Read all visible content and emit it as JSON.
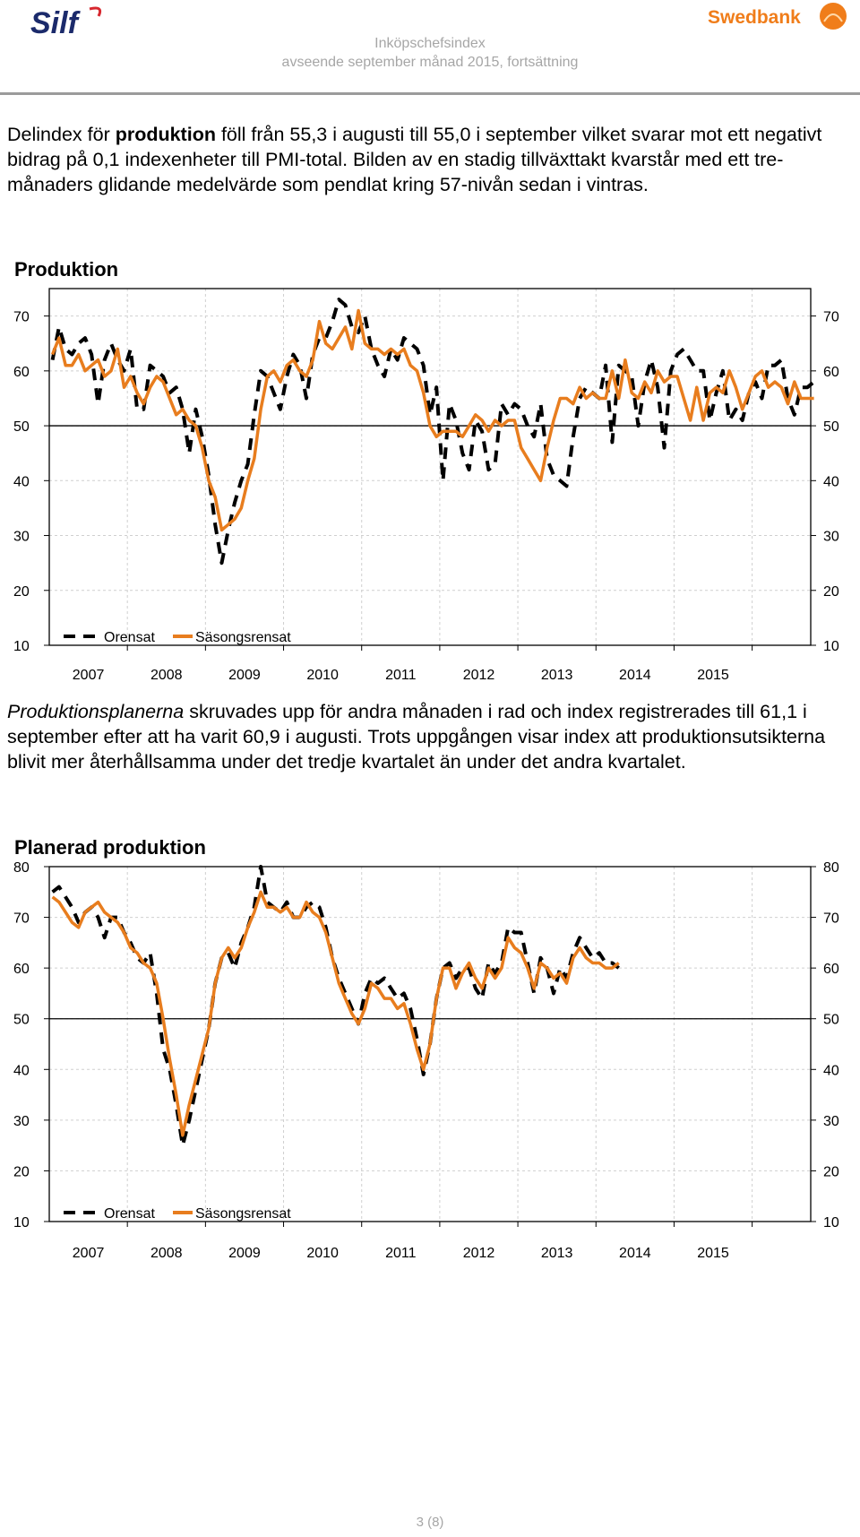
{
  "header": {
    "logo_left": "Silf",
    "logo_right": "Swedbank",
    "title": "Inköpschefsindex",
    "subtitle": "avseende september månad 2015, fortsättning"
  },
  "paragraph1": {
    "pre": "Delindex för ",
    "bold": "produktion",
    "post": " föll från 55,3 i augusti till 55,0 i september vilket svarar mot ett negativt bidrag på 0,1 indexenheter till PMI-total. Bilden av en stadig tillväxttakt kvarstår med ett tre-månaders glidande medelvärde som pendlat kring 57-nivån sedan i vintras."
  },
  "paragraph2": {
    "italic": "Produktionsplanerna",
    "post": " skruvades upp för andra månaden i rad och index registrerades till 61,1 i september efter att ha varit 60,9 i augusti. Trots uppgången visar index att produktionsutsikterna blivit mer återhållsamma under det tredje kvartalet än under det andra kvartalet."
  },
  "footer": {
    "page": "3 (8)"
  },
  "colors": {
    "orensat": "#000000",
    "sasongsrensat": "#e87d1e",
    "header_grey": "#a6a6a6"
  },
  "chart_data": [
    {
      "type": "line",
      "title": "Produktion",
      "x_start": 2006.0,
      "x_step": 0.08333,
      "xlim": [
        2006.0,
        2015.75
      ],
      "x_tick_labels": [
        "2007",
        "2008",
        "2009",
        "2010",
        "2011",
        "2012",
        "2013",
        "2014",
        "2015"
      ],
      "x_tick_positions": [
        2006.5,
        2007.5,
        2008.5,
        2009.5,
        2010.5,
        2011.5,
        2012.5,
        2013.5,
        2014.5
      ],
      "ylim": [
        10,
        75
      ],
      "y_ticks": [
        10,
        20,
        30,
        40,
        50,
        60,
        70
      ],
      "y_tick_labels": [
        "10",
        "20",
        "30",
        "40",
        "50",
        "60",
        "70"
      ],
      "reference_line": 50,
      "legend": [
        "Orensat",
        "Säsongsrensat"
      ],
      "series": [
        {
          "name": "Orensat",
          "style": "dashed",
          "values": [
            62,
            68,
            64,
            63,
            65,
            66,
            63,
            54,
            62,
            65,
            62,
            60,
            64,
            53,
            53,
            61,
            60,
            59,
            56,
            57,
            53,
            45,
            53,
            48,
            41,
            32,
            25,
            31,
            36,
            40,
            43,
            52,
            60,
            59,
            56,
            53,
            59,
            63,
            61,
            55,
            63,
            66,
            66,
            69,
            73,
            72,
            68,
            67,
            70,
            64,
            61,
            59,
            64,
            62,
            66,
            65,
            64,
            61,
            52,
            57,
            40,
            54,
            51,
            45,
            42,
            51,
            49,
            42,
            43,
            54,
            52,
            54,
            53,
            50,
            48,
            54,
            44,
            41,
            40,
            39,
            48,
            55,
            57,
            56,
            55,
            61,
            47,
            61,
            60,
            59,
            50,
            58,
            62,
            57,
            46,
            60,
            63,
            64,
            62,
            60,
            60,
            51,
            56,
            60,
            51,
            53,
            51,
            56,
            58,
            55,
            61,
            61,
            62,
            55,
            52,
            57,
            57,
            58
          ]
        },
        {
          "name": "Säsongsrensat",
          "style": "solid",
          "values": [
            63,
            66,
            61,
            61,
            63,
            60,
            61,
            62,
            59,
            60,
            64,
            57,
            59,
            56,
            54,
            57,
            59,
            58,
            55,
            52,
            53,
            51,
            50,
            46,
            40,
            37,
            31,
            32,
            33,
            35,
            40,
            44,
            53,
            59,
            60,
            58,
            61,
            62,
            60,
            59,
            62,
            69,
            65,
            64,
            66,
            68,
            64,
            71,
            65,
            64,
            64,
            63,
            64,
            63,
            64,
            61,
            60,
            56,
            50,
            48,
            49,
            49,
            49,
            48,
            50,
            52,
            51,
            49,
            51,
            50,
            51,
            51,
            46,
            44,
            42,
            40,
            46,
            51,
            55,
            55,
            54,
            57,
            55,
            56,
            55,
            55,
            60,
            55,
            62,
            56,
            55,
            58,
            56,
            60,
            58,
            59,
            59,
            55,
            51,
            57,
            51,
            56,
            57,
            56,
            60,
            57,
            53,
            56,
            59,
            60,
            57,
            58,
            57,
            54,
            58,
            55,
            55,
            55
          ]
        }
      ]
    },
    {
      "type": "line",
      "title": "Planerad produktion",
      "x_start": 2006.0,
      "x_step": 0.08333,
      "xlim": [
        2006.0,
        2015.75
      ],
      "x_tick_labels": [
        "2007",
        "2008",
        "2009",
        "2010",
        "2011",
        "2012",
        "2013",
        "2014",
        "2015"
      ],
      "x_tick_positions": [
        2006.5,
        2007.5,
        2008.5,
        2009.5,
        2010.5,
        2011.5,
        2012.5,
        2013.5,
        2014.5
      ],
      "ylim": [
        10,
        80
      ],
      "y_ticks": [
        10,
        20,
        30,
        40,
        50,
        60,
        70,
        80
      ],
      "y_tick_labels": [
        "10",
        "20",
        "30",
        "40",
        "50",
        "60",
        "70",
        "80"
      ],
      "reference_line": 50,
      "legend": [
        "Orensat",
        "Säsongsrensat"
      ],
      "series": [
        {
          "name": "Orensat",
          "style": "dashed",
          "values": [
            75,
            76,
            74,
            72,
            69,
            71,
            72,
            70,
            66,
            70,
            70,
            67,
            65,
            62,
            61,
            63,
            55,
            44,
            40,
            33,
            25,
            30,
            36,
            42,
            48,
            57,
            62,
            63,
            60,
            65,
            68,
            72,
            80,
            73,
            72,
            71,
            73,
            70,
            70,
            72,
            73,
            72,
            68,
            62,
            58,
            55,
            52,
            49,
            55,
            58,
            57,
            58,
            56,
            54,
            55,
            52,
            46,
            39,
            45,
            54,
            60,
            61,
            58,
            60,
            60,
            56,
            54,
            61,
            59,
            61,
            68,
            67,
            67,
            61,
            55,
            62,
            60,
            55,
            60,
            58,
            63,
            66,
            64,
            62,
            63,
            61,
            61,
            60
          ]
        },
        {
          "name": "Säsongsrensat",
          "style": "solid",
          "values": [
            74,
            73,
            71,
            69,
            68,
            71,
            72,
            73,
            71,
            70,
            69,
            67,
            64,
            63,
            61,
            60,
            57,
            50,
            42,
            35,
            27,
            33,
            38,
            43,
            48,
            57,
            62,
            64,
            62,
            64,
            68,
            71,
            75,
            72,
            72,
            71,
            72,
            70,
            70,
            73,
            71,
            70,
            67,
            62,
            57,
            54,
            51,
            49,
            52,
            57,
            56,
            54,
            54,
            52,
            53,
            49,
            44,
            40,
            45,
            54,
            60,
            60,
            56,
            59,
            61,
            58,
            56,
            60,
            58,
            60,
            66,
            64,
            63,
            60,
            56,
            61,
            60,
            58,
            59,
            57,
            62,
            64,
            62,
            61,
            61,
            60,
            60,
            61
          ]
        }
      ]
    }
  ]
}
